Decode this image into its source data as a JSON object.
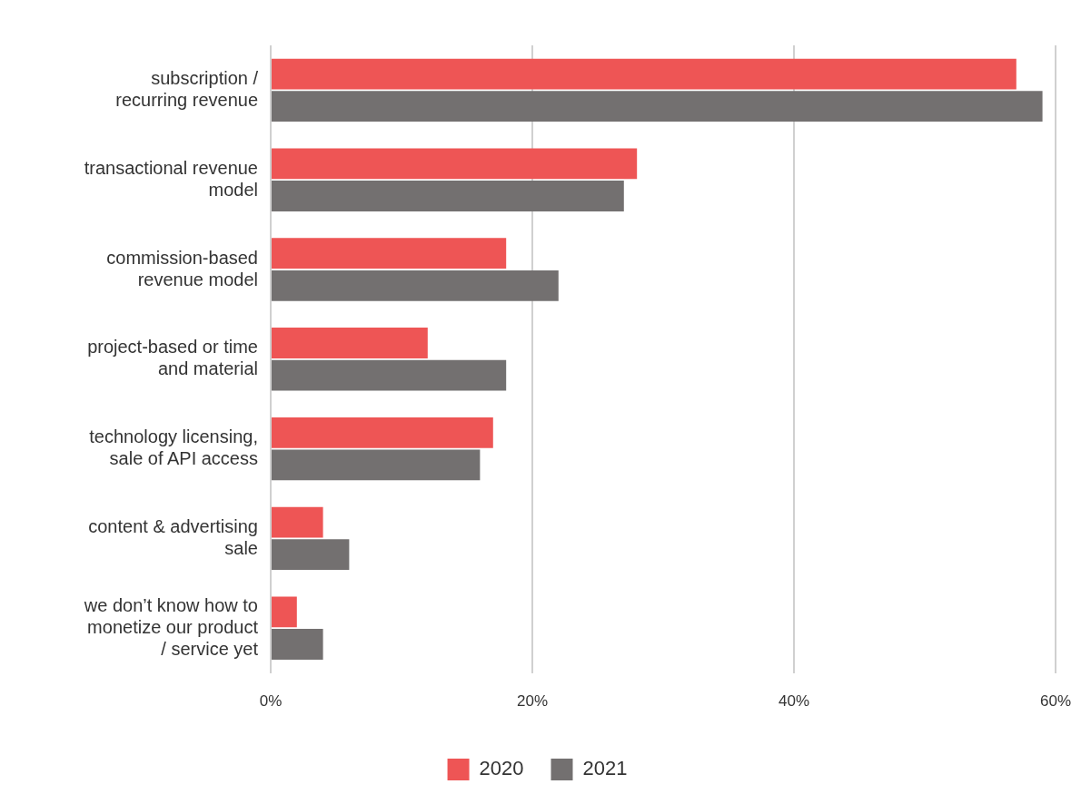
{
  "chart_data": {
    "type": "bar",
    "orientation": "horizontal",
    "categories": [
      "subscription / recurring revenue",
      "transactional revenue model",
      "commission-based revenue model",
      "project-based or time and material",
      "technology licensing, sale of API access",
      "content & advertising sale",
      "we don’t know how to monetize our product / service yet"
    ],
    "series": [
      {
        "name": "2020",
        "color": "#ee5555",
        "values": [
          57,
          28,
          18,
          12,
          17,
          4,
          2
        ]
      },
      {
        "name": "2021",
        "color": "#737070",
        "values": [
          59,
          27,
          22,
          18,
          16,
          6,
          4
        ]
      }
    ],
    "xlim": [
      0,
      60
    ],
    "xticks": [
      {
        "value": 0,
        "label": "0%"
      },
      {
        "value": 20,
        "label": "20%"
      },
      {
        "value": 40,
        "label": "40%"
      },
      {
        "value": 60,
        "label": "60%"
      }
    ],
    "grid": "x",
    "legend": "bottom"
  }
}
